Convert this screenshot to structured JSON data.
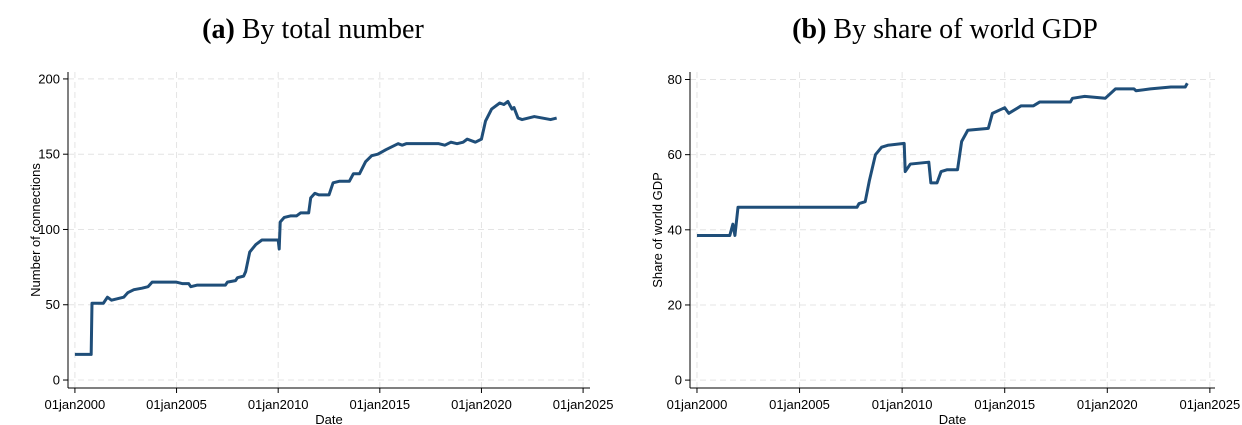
{
  "chart_data": [
    {
      "type": "line",
      "label": "(a)",
      "title": "By total number",
      "xlabel": "Date",
      "ylabel": "Number of connections",
      "color": "#1f4e79",
      "xlim": [
        1999.66,
        2025.34
      ],
      "ylim": [
        -5.3,
        204.6
      ],
      "xticks": [
        {
          "value": 2000,
          "label": "01jan2000"
        },
        {
          "value": 2005,
          "label": "01jan2005"
        },
        {
          "value": 2010,
          "label": "01jan2010"
        },
        {
          "value": 2015,
          "label": "01jan2015"
        },
        {
          "value": 2020,
          "label": "01jan2020"
        },
        {
          "value": 2025,
          "label": "01jan2025"
        }
      ],
      "yticks": [
        0,
        50,
        100,
        150,
        200
      ],
      "grid": true,
      "x": [
        2000.0,
        2000.8,
        2000.84,
        2001.4,
        2001.6,
        2001.8,
        2002.1,
        2002.4,
        2002.6,
        2002.9,
        2003.3,
        2003.6,
        2003.8,
        2005.0,
        2005.3,
        2005.6,
        2005.7,
        2006.0,
        2007.4,
        2007.5,
        2007.9,
        2008.0,
        2008.3,
        2008.4,
        2008.6,
        2008.9,
        2009.2,
        2010.0,
        2010.05,
        2010.1,
        2010.3,
        2010.6,
        2010.9,
        2011.1,
        2011.5,
        2011.6,
        2011.8,
        2012.0,
        2012.5,
        2012.7,
        2013.0,
        2013.5,
        2013.7,
        2014.0,
        2014.3,
        2014.6,
        2014.9,
        2015.3,
        2015.6,
        2015.9,
        2016.1,
        2016.3,
        2017.9,
        2018.2,
        2018.5,
        2018.8,
        2019.1,
        2019.3,
        2019.7,
        2020.0,
        2020.2,
        2020.5,
        2020.9,
        2021.1,
        2021.3,
        2021.5,
        2021.6,
        2021.8,
        2022.0,
        2022.6,
        2023.0,
        2023.4,
        2023.7
      ],
      "values": [
        17,
        17,
        51,
        51,
        55,
        53,
        54,
        55,
        58,
        60,
        61,
        62,
        65,
        65,
        64,
        64,
        62,
        63,
        63,
        65,
        66,
        68,
        69,
        72,
        85,
        90,
        93,
        93,
        87,
        105,
        108,
        109,
        109,
        111,
        111,
        121,
        124,
        123,
        123,
        131,
        132,
        132,
        137,
        137,
        145,
        149,
        150,
        153,
        155,
        157,
        156,
        157,
        157,
        156,
        158,
        157,
        158,
        160,
        158,
        160,
        172,
        180,
        184,
        183,
        185,
        180,
        181,
        174,
        173,
        175,
        174,
        173,
        174
      ]
    },
    {
      "type": "line",
      "label": "(b)",
      "title": "By share of world GDP",
      "xlabel": "Date",
      "ylabel": "Share of world GDP",
      "color": "#1f4e79",
      "xlim": [
        1999.66,
        2025.25
      ],
      "ylim": [
        -2.1,
        82
      ],
      "xticks": [
        {
          "value": 2000,
          "label": "01jan2000"
        },
        {
          "value": 2005,
          "label": "01jan2005"
        },
        {
          "value": 2010,
          "label": "01jan2010"
        },
        {
          "value": 2015,
          "label": "01jan2015"
        },
        {
          "value": 2020,
          "label": "01jan2020"
        },
        {
          "value": 2025,
          "label": "01jan2025"
        }
      ],
      "yticks": [
        0,
        20,
        40,
        60,
        80
      ],
      "grid": true,
      "x": [
        2000.0,
        2001.6,
        2001.75,
        2001.85,
        2002.0,
        2007.8,
        2007.9,
        2008.2,
        2008.4,
        2008.7,
        2009.0,
        2009.3,
        2010.1,
        2010.15,
        2010.4,
        2011.3,
        2011.4,
        2011.7,
        2011.9,
        2012.2,
        2012.7,
        2012.9,
        2013.2,
        2014.2,
        2014.4,
        2014.8,
        2015.0,
        2015.2,
        2015.8,
        2016.4,
        2016.7,
        2018.2,
        2018.3,
        2018.9,
        2019.9,
        2020.4,
        2021.3,
        2021.4,
        2022.1,
        2023.1,
        2023.8,
        2023.9
      ],
      "values": [
        38.5,
        38.5,
        41.5,
        38.5,
        46,
        46,
        47,
        47.5,
        53,
        60,
        62,
        62.5,
        63,
        55.5,
        57.5,
        58,
        52.5,
        52.5,
        55.5,
        56,
        56,
        63.5,
        66.5,
        67,
        71,
        72,
        72.5,
        71,
        73,
        73,
        74,
        74,
        75,
        75.5,
        75,
        77.5,
        77.5,
        77,
        77.5,
        78,
        78,
        79
      ]
    }
  ]
}
